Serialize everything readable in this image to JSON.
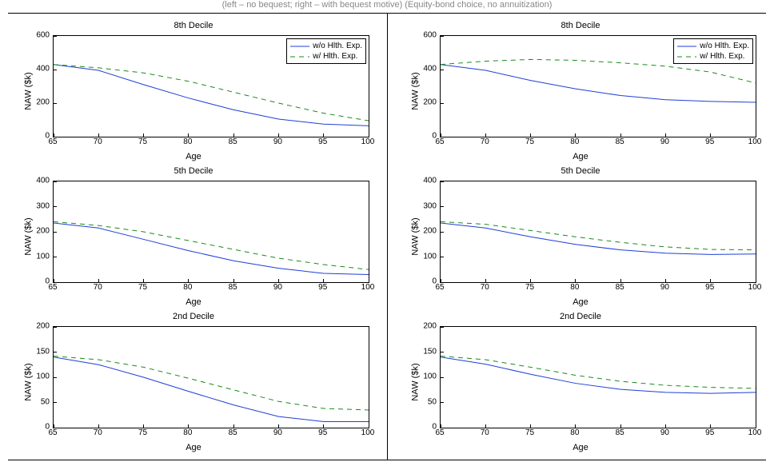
{
  "caption": "(left – no bequest; right – with bequest motive) (Equity-bond choice, no annuitization)",
  "xlabel": "Age",
  "ylabel": "NAW ($k)",
  "x_ticks": [
    65,
    70,
    75,
    80,
    85,
    90,
    95,
    100
  ],
  "xlim": [
    65,
    100
  ],
  "series_defs": {
    "s1": {
      "label": "w/o Hlth. Exp.",
      "color": "#1f3fd6",
      "dash": null,
      "width": 1
    },
    "s2": {
      "label": "w/   Hlth. Exp.",
      "color": "#1a8a1a",
      "dash": "6,5",
      "width": 1
    }
  },
  "style": {
    "background": "#ffffff",
    "axis_color": "#000000",
    "tick_fontsize": 10,
    "title_fontsize": 11,
    "label_fontsize": 11,
    "caption_color": "#888888"
  },
  "panels": [
    {
      "row": 0,
      "col": 0,
      "title": "8th Decile",
      "ylim": [
        0,
        600
      ],
      "y_ticks": [
        0,
        200,
        400,
        600
      ],
      "legend": true,
      "series": {
        "s1": [
          [
            65,
            430
          ],
          [
            70,
            395
          ],
          [
            75,
            310
          ],
          [
            80,
            230
          ],
          [
            85,
            160
          ],
          [
            90,
            105
          ],
          [
            95,
            75
          ],
          [
            100,
            65
          ]
        ],
        "s2": [
          [
            65,
            430
          ],
          [
            70,
            410
          ],
          [
            75,
            380
          ],
          [
            80,
            330
          ],
          [
            85,
            265
          ],
          [
            90,
            200
          ],
          [
            95,
            140
          ],
          [
            100,
            95
          ]
        ]
      }
    },
    {
      "row": 0,
      "col": 1,
      "title": "8th Decile",
      "ylim": [
        0,
        600
      ],
      "y_ticks": [
        0,
        200,
        400,
        600
      ],
      "legend": true,
      "series": {
        "s1": [
          [
            65,
            430
          ],
          [
            70,
            395
          ],
          [
            75,
            335
          ],
          [
            80,
            285
          ],
          [
            85,
            245
          ],
          [
            90,
            220
          ],
          [
            95,
            210
          ],
          [
            100,
            205
          ]
        ],
        "s2": [
          [
            65,
            430
          ],
          [
            70,
            450
          ],
          [
            75,
            460
          ],
          [
            80,
            455
          ],
          [
            85,
            440
          ],
          [
            90,
            420
          ],
          [
            95,
            385
          ],
          [
            100,
            320
          ]
        ]
      }
    },
    {
      "row": 1,
      "col": 0,
      "title": "5th Decile",
      "ylim": [
        0,
        400
      ],
      "y_ticks": [
        0,
        100,
        200,
        300,
        400
      ],
      "legend": false,
      "series": {
        "s1": [
          [
            65,
            235
          ],
          [
            70,
            215
          ],
          [
            75,
            170
          ],
          [
            80,
            125
          ],
          [
            85,
            85
          ],
          [
            90,
            55
          ],
          [
            95,
            35
          ],
          [
            100,
            30
          ]
        ],
        "s2": [
          [
            65,
            240
          ],
          [
            70,
            225
          ],
          [
            75,
            200
          ],
          [
            80,
            165
          ],
          [
            85,
            130
          ],
          [
            90,
            95
          ],
          [
            95,
            70
          ],
          [
            100,
            50
          ]
        ]
      }
    },
    {
      "row": 1,
      "col": 1,
      "title": "5th Decile",
      "ylim": [
        0,
        400
      ],
      "y_ticks": [
        0,
        100,
        200,
        300,
        400
      ],
      "legend": false,
      "series": {
        "s1": [
          [
            65,
            235
          ],
          [
            70,
            215
          ],
          [
            75,
            180
          ],
          [
            80,
            150
          ],
          [
            85,
            128
          ],
          [
            90,
            115
          ],
          [
            95,
            110
          ],
          [
            100,
            112
          ]
        ],
        "s2": [
          [
            65,
            240
          ],
          [
            70,
            230
          ],
          [
            75,
            205
          ],
          [
            80,
            180
          ],
          [
            85,
            158
          ],
          [
            90,
            140
          ],
          [
            95,
            130
          ],
          [
            100,
            128
          ]
        ]
      }
    },
    {
      "row": 2,
      "col": 0,
      "title": "2nd Decile",
      "ylim": [
        0,
        200
      ],
      "y_ticks": [
        0,
        50,
        100,
        150,
        200
      ],
      "legend": false,
      "series": {
        "s1": [
          [
            65,
            140
          ],
          [
            70,
            125
          ],
          [
            75,
            100
          ],
          [
            80,
            72
          ],
          [
            85,
            45
          ],
          [
            90,
            22
          ],
          [
            95,
            12
          ],
          [
            100,
            12
          ]
        ],
        "s2": [
          [
            65,
            142
          ],
          [
            70,
            135
          ],
          [
            75,
            120
          ],
          [
            80,
            98
          ],
          [
            85,
            75
          ],
          [
            90,
            52
          ],
          [
            95,
            38
          ],
          [
            100,
            35
          ]
        ]
      }
    },
    {
      "row": 2,
      "col": 1,
      "title": "2nd Decile",
      "ylim": [
        0,
        200
      ],
      "y_ticks": [
        0,
        50,
        100,
        150,
        200
      ],
      "legend": false,
      "series": {
        "s1": [
          [
            65,
            140
          ],
          [
            70,
            126
          ],
          [
            75,
            106
          ],
          [
            80,
            88
          ],
          [
            85,
            76
          ],
          [
            90,
            70
          ],
          [
            95,
            68
          ],
          [
            100,
            70
          ]
        ],
        "s2": [
          [
            65,
            142
          ],
          [
            70,
            135
          ],
          [
            75,
            120
          ],
          [
            80,
            104
          ],
          [
            85,
            92
          ],
          [
            90,
            84
          ],
          [
            95,
            80
          ],
          [
            100,
            78
          ]
        ]
      }
    }
  ]
}
